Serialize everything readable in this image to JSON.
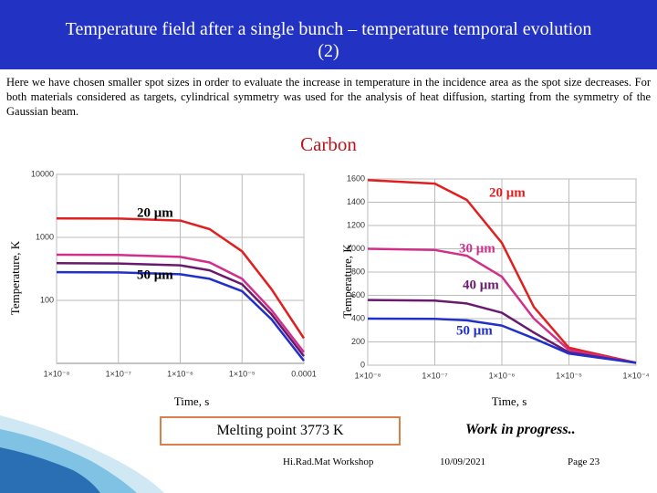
{
  "header": {
    "title": "Temperature field  after a single  bunch  – temperature temporal evolution  (2)"
  },
  "intro": "Here we have chosen smaller spot sizes in order to evaluate the increase in temperature in the incidence area as the spot size decreases. For both materials considered as targets, cylindrical symmetry was used for the analysis of heat diffusion, starting from the symmetry of the Gaussian beam.",
  "material": "Carbon",
  "chart_data": [
    {
      "type": "line",
      "xscale": "log",
      "yscale": "log",
      "grid": true,
      "x_label": "Time, s",
      "y_label": "Temperature, K",
      "xlim": [
        1e-08,
        0.0001
      ],
      "ylim": [
        10,
        10000
      ],
      "xticks": [
        {
          "value": 1e-08,
          "label": "1×10⁻⁸"
        },
        {
          "value": 1e-07,
          "label": "1×10⁻⁷"
        },
        {
          "value": 1e-06,
          "label": "1×10⁻⁶"
        },
        {
          "value": 1e-05,
          "label": "1×10⁻⁵"
        },
        0.0001
      ],
      "yticks": [
        100,
        1000,
        10000
      ],
      "x": [
        1e-08,
        1e-07,
        1e-06,
        3e-06,
        1e-05,
        3e-05,
        0.0001
      ],
      "series": [
        {
          "color": "#e02020",
          "values": [
            2000,
            1990,
            1850,
            1350,
            600,
            150,
            25
          ]
        },
        {
          "color": "#d0308a",
          "values": [
            530,
            525,
            490,
            400,
            220,
            70,
            15
          ]
        },
        {
          "color": "#6a1a6e",
          "values": [
            390,
            385,
            360,
            300,
            180,
            60,
            13
          ]
        },
        {
          "color": "#2030c8",
          "values": [
            280,
            278,
            260,
            220,
            140,
            50,
            11
          ]
        }
      ],
      "annotations": [
        {
          "text": "20 μm",
          "color": "#000000"
        },
        {
          "text": "50 μm",
          "color": "#000000"
        }
      ]
    },
    {
      "type": "line",
      "xscale": "log",
      "yscale": "linear",
      "grid": true,
      "x_label": "Time, s",
      "y_label": "Temperature, K",
      "xlim": [
        1e-08,
        0.0001
      ],
      "ylim": [
        0,
        1600
      ],
      "xticks": [
        {
          "value": 1e-08,
          "label": "1×10⁻⁸"
        },
        {
          "value": 1e-07,
          "label": "1×10⁻⁷"
        },
        {
          "value": 1e-06,
          "label": "1×10⁻⁶"
        },
        {
          "value": 1e-05,
          "label": "1×10⁻⁵"
        },
        {
          "value": 0.0001,
          "label": "1×10⁻⁴"
        }
      ],
      "yticks": [
        0,
        200,
        400,
        600,
        800,
        1000,
        1200,
        1400,
        1600
      ],
      "x": [
        1e-08,
        1e-07,
        3e-07,
        1e-06,
        3e-06,
        1e-05,
        0.0001
      ],
      "series": [
        {
          "color": "#e02020",
          "values": [
            1590,
            1560,
            1420,
            1050,
            500,
            150,
            20
          ]
        },
        {
          "color": "#d0308a",
          "values": [
            1000,
            990,
            940,
            760,
            400,
            130,
            20
          ]
        },
        {
          "color": "#6a1a6e",
          "values": [
            560,
            555,
            530,
            450,
            280,
            110,
            20
          ]
        },
        {
          "color": "#2030c8",
          "values": [
            400,
            398,
            385,
            340,
            230,
            100,
            20
          ]
        }
      ],
      "annotations": [
        {
          "text": "20 μm",
          "color": "#e02020"
        },
        {
          "text": "30 μm",
          "color": "#d0308a"
        },
        {
          "text": "40 μm",
          "color": "#6a1a6e"
        },
        {
          "text": "50 μm",
          "color": "#2030c8"
        }
      ]
    }
  ],
  "melting_point": "Melting point  3773 K",
  "status": "Work in progress..",
  "footer": {
    "event": "Hi.Rad.Mat  Workshop",
    "date": "10/09/2021",
    "page": "Page 23"
  }
}
